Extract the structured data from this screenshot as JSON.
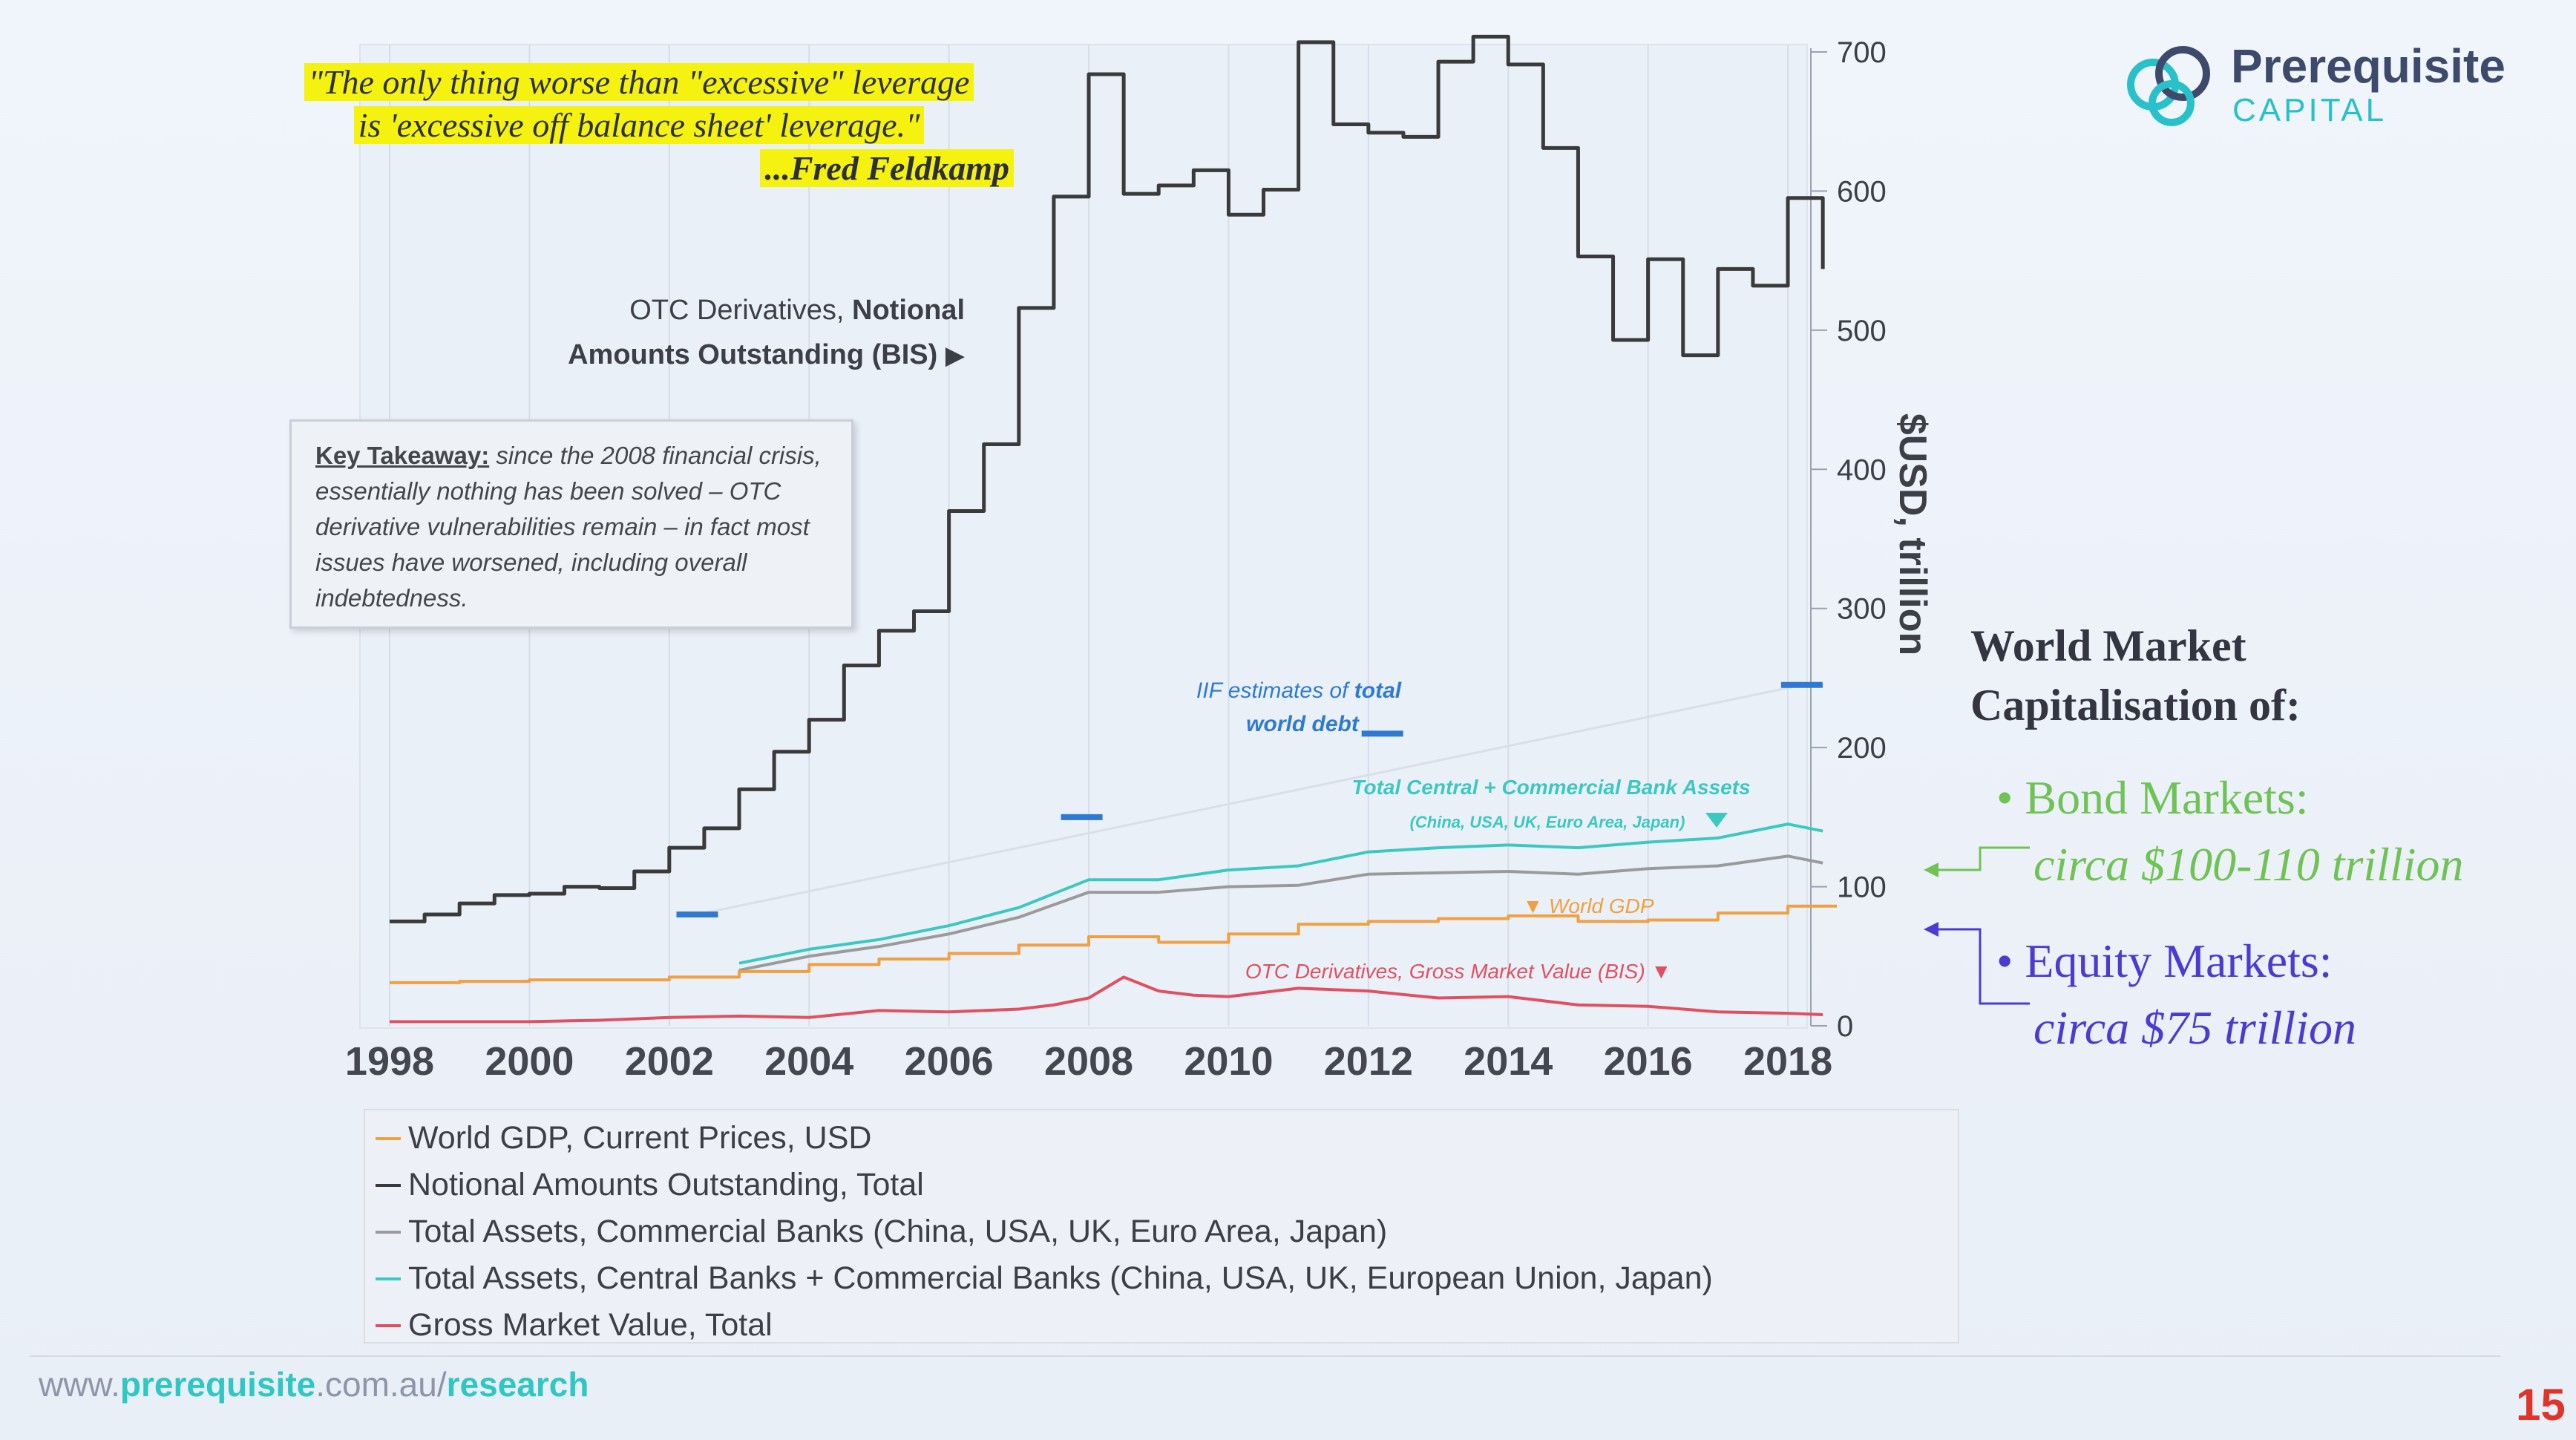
{
  "quote": {
    "line1": "\"The only thing worse than \"excessive\" leverage",
    "line2": "is 'excessive off balance sheet' leverage.\"",
    "attribution": "...Fred Feldkamp"
  },
  "logo": {
    "name": "Prerequisite",
    "sub": "CAPITAL",
    "accent": "#29c1c9"
  },
  "otc_label": {
    "line1_plain": "OTC Derivatives, ",
    "line1_bold": "Notional",
    "line2": "Amounts Outstanding (BIS)"
  },
  "takeaway": {
    "title": "Key Takeaway:",
    "text": " since the 2008 financial crisis, essentially nothing has been solved – OTC derivative vulnerabilities remain – in fact most issues have worsened, including overall indebtedness."
  },
  "annotations": {
    "iif_line1_plain": "IIF estimates of ",
    "iif_line1_bold": "total",
    "iif_line2": "world debt",
    "bank_assets_line1": "Total Central + Commercial Bank Assets",
    "bank_assets_line2": "(China, USA, UK, Euro Area, Japan)",
    "world_gdp": "World GDP",
    "gross_value": "OTC Derivatives, Gross Market Value (BIS)"
  },
  "market_cap": {
    "title_line1": "World Market",
    "title_line2": "Capitalisation of:",
    "bond_label": "• Bond Markets:",
    "bond_value": "circa $100-110 trillion",
    "equity_label": "• Equity Markets:",
    "equity_value": "circa $75 trillion",
    "bond_color": "#6fc355",
    "equity_color": "#4d3ad1"
  },
  "legend": [
    {
      "label": "World GDP, Current Prices, USD",
      "color": "#f0a040"
    },
    {
      "label": "Notional Amounts Outstanding, Total",
      "color": "#3a3a3a"
    },
    {
      "label": "Total Assets, Commercial Banks (China, USA, UK, Euro Area, Japan)",
      "color": "#9a9a9a"
    },
    {
      "label": "Total Assets, Central Banks + Commercial Banks (China, USA, UK, European Union, Japan)",
      "color": "#3cc8c0"
    },
    {
      "label": "Gross Market Value, Total",
      "color": "#e05060"
    }
  ],
  "footer": {
    "pre": "www.",
    "brand": "prerequisite",
    "mid": ".com.au/",
    "section": "research"
  },
  "page_number": "15",
  "chart_data": {
    "type": "line",
    "ylabel": "$USD, trillion",
    "xlim": [
      1998,
      2018.7
    ],
    "ylim": [
      0,
      700
    ],
    "x_ticks": [
      1998,
      2000,
      2002,
      2004,
      2006,
      2008,
      2010,
      2012,
      2014,
      2016,
      2018
    ],
    "y_ticks": [
      0,
      100,
      200,
      300,
      400,
      500,
      600,
      700
    ],
    "series": [
      {
        "name": "Notional Amounts Outstanding, Total",
        "color": "#3a3a3a",
        "step": true,
        "x": [
          1998,
          1998.5,
          1999,
          1999.5,
          2000,
          2000.5,
          2001,
          2001.5,
          2002,
          2002.5,
          2003,
          2003.5,
          2004,
          2004.5,
          2005,
          2005.5,
          2006,
          2006.5,
          2007,
          2007.5,
          2008,
          2008.5,
          2009,
          2009.5,
          2010,
          2010.5,
          2011,
          2011.5,
          2012,
          2012.5,
          2013,
          2013.5,
          2014,
          2014.5,
          2015,
          2015.5,
          2016,
          2016.5,
          2017,
          2017.5,
          2018,
          2018.5
        ],
        "y": [
          75,
          80,
          88,
          94,
          95,
          100,
          99,
          111,
          128,
          142,
          170,
          197,
          220,
          259,
          284,
          298,
          370,
          418,
          516,
          596,
          684,
          598,
          604,
          615,
          583,
          601,
          707,
          648,
          642,
          639,
          693,
          711,
          691,
          631,
          553,
          493,
          551,
          482,
          544,
          532,
          595,
          544
        ]
      },
      {
        "name": "Total Assets, Central Banks + Commercial Banks (China, USA, UK, European Union, Japan)",
        "color": "#3cc8c0",
        "x": [
          2003,
          2004,
          2005,
          2006,
          2007,
          2008,
          2009,
          2010,
          2011,
          2012,
          2013,
          2014,
          2015,
          2016,
          2017,
          2018,
          2018.5
        ],
        "y": [
          45,
          55,
          62,
          72,
          85,
          105,
          105,
          112,
          115,
          125,
          128,
          130,
          128,
          132,
          135,
          145,
          140
        ]
      },
      {
        "name": "Total Assets, Commercial Banks (China, USA, UK, Euro Area, Japan)",
        "color": "#9a9a9a",
        "x": [
          2003,
          2004,
          2005,
          2006,
          2007,
          2008,
          2009,
          2010,
          2011,
          2012,
          2013,
          2014,
          2015,
          2016,
          2017,
          2018,
          2018.5
        ],
        "y": [
          40,
          50,
          57,
          66,
          78,
          96,
          96,
          100,
          101,
          109,
          110,
          111,
          109,
          113,
          115,
          122,
          117
        ]
      },
      {
        "name": "World GDP, Current Prices, USD",
        "color": "#f0a040",
        "step": true,
        "x": [
          1998,
          1999,
          2000,
          2001,
          2002,
          2003,
          2004,
          2005,
          2006,
          2007,
          2008,
          2009,
          2010,
          2011,
          2012,
          2013,
          2014,
          2015,
          2016,
          2017,
          2018,
          2018.7
        ],
        "y": [
          31,
          32,
          33,
          33,
          35,
          39,
          44,
          48,
          52,
          58,
          64,
          60,
          66,
          73,
          75,
          77,
          79,
          75,
          76,
          81,
          86,
          86
        ]
      },
      {
        "name": "Gross Market Value, Total",
        "color": "#e05060",
        "x": [
          1998,
          1999,
          2000,
          2001,
          2002,
          2003,
          2004,
          2005,
          2006,
          2007,
          2007.5,
          2008,
          2008.5,
          2009,
          2009.5,
          2010,
          2011,
          2012,
          2013,
          2014,
          2015,
          2016,
          2017,
          2018,
          2018.5
        ],
        "y": [
          3,
          3,
          3,
          4,
          6,
          7,
          6,
          11,
          10,
          12,
          15,
          20,
          35,
          25,
          22,
          21,
          27,
          25,
          20,
          21,
          15,
          14,
          10,
          9,
          8
        ]
      },
      {
        "name": "IIF estimates of total world debt",
        "color": "#2f7ad0",
        "markers_only": true,
        "x": [
          2002.4,
          2007.9,
          2012.2,
          2018.2
        ],
        "y": [
          80,
          150,
          210,
          245
        ]
      }
    ]
  }
}
